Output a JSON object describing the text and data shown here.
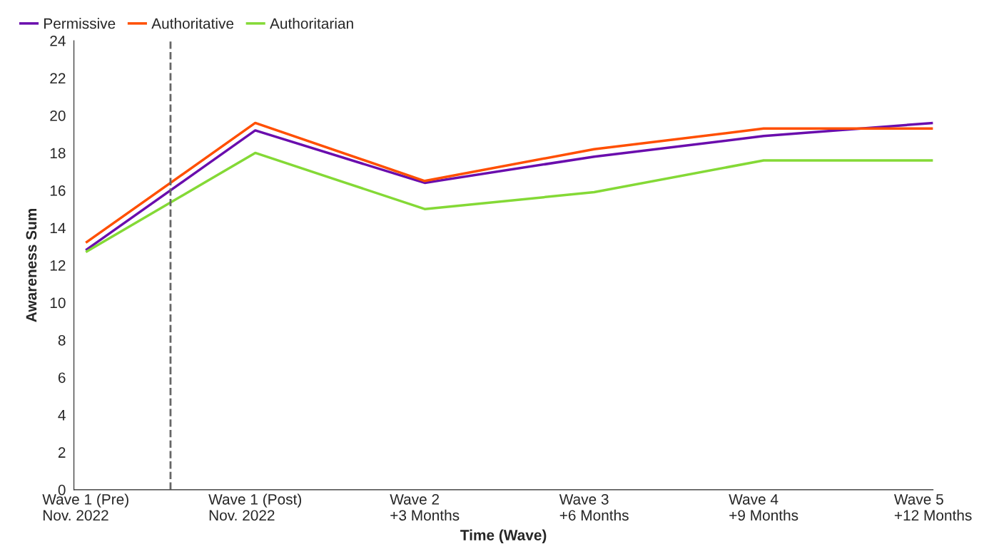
{
  "chart_data": {
    "type": "line",
    "xlabel": "Time (Wave)",
    "ylabel": "Awareness Sum",
    "categories": [
      "Wave 1 (Pre)\nNov. 2022",
      "Wave 1 (Post)\nNov. 2022",
      "Wave 2\n+3 Months",
      "Wave 3\n+6 Months",
      "Wave 4\n+9 Months",
      "Wave 5\n+12 Months"
    ],
    "series": [
      {
        "name": "Permissive",
        "color": "#6a0dad",
        "values": [
          12.8,
          19.2,
          16.4,
          17.8,
          18.9,
          19.6
        ]
      },
      {
        "name": "Authoritative",
        "color": "#ff4f00",
        "values": [
          13.2,
          19.6,
          16.5,
          18.2,
          19.3,
          19.3
        ]
      },
      {
        "name": "Authoritarian",
        "color": "#84d936",
        "values": [
          12.7,
          18.0,
          15.0,
          15.9,
          17.6,
          17.6
        ]
      }
    ],
    "ylim": [
      0,
      24
    ],
    "yticks": [
      0,
      2,
      4,
      6,
      8,
      10,
      12,
      14,
      16,
      18,
      20,
      22,
      24
    ],
    "grid": false,
    "legend": "top left",
    "marker": "none",
    "line_style": "solid"
  }
}
